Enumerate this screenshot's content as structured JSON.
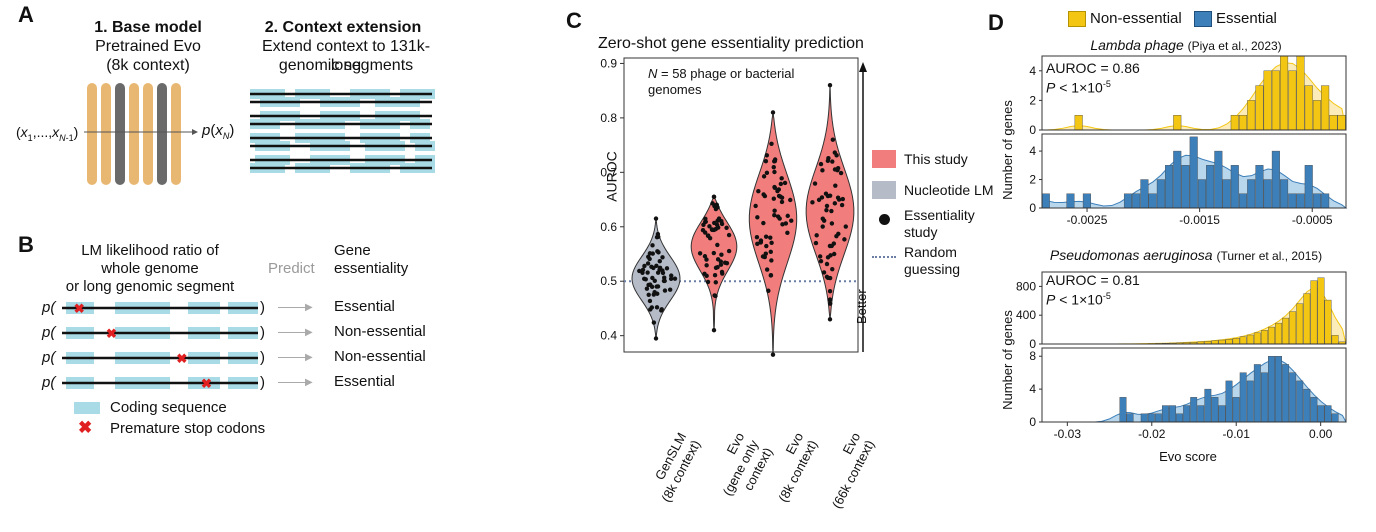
{
  "colors": {
    "tan": "#e8b872",
    "grey_bar": "#6a6a6a",
    "cyan": "#a8dbe6",
    "pink": "#f17d7d",
    "violin_grey": "#b5bcc8",
    "gold": "#f3c614",
    "gold_fill": "#fbe7a8",
    "blue": "#3d7fb9",
    "blue_fill": "#a6cde8",
    "red": "#e02020"
  },
  "panelA": {
    "label": "A",
    "base_title": "1. Base model",
    "base_sub1": "Pretrained Evo",
    "base_sub2": "(8k context)",
    "input_label": "(x1,...,xN-1)",
    "output_label": "p(xN)",
    "ext_title": "2. Context extension",
    "ext_sub1": "Extend context to 131k-long",
    "ext_sub2": "genomic segments"
  },
  "panelB": {
    "label": "B",
    "head1": "LM likelihood ratio of",
    "head2": "whole genome",
    "head3": "or long genomic segment",
    "predict": "Predict",
    "gene1": "Gene",
    "gene2": "essentiality",
    "p_prefix": "p(",
    "p_suffix": ")",
    "rows": [
      {
        "outcome": "Essential",
        "stop": 0.08
      },
      {
        "outcome": "Non-essential",
        "stop": 0.25
      },
      {
        "outcome": "Non-essential",
        "stop": 0.62
      },
      {
        "outcome": "Essential",
        "stop": 0.75
      }
    ],
    "legend_coding": "Coding sequence",
    "legend_stop": "Premature stop codons"
  },
  "panelC": {
    "label": "C",
    "chart_data": {
      "type": "violin",
      "title": "Zero-shot gene essentiality prediction",
      "ylabel": "AUROC",
      "ylim": [
        0.37,
        0.91
      ],
      "yticks": [
        "0.4",
        "0.5",
        "0.6",
        "0.7",
        "0.8",
        "0.9"
      ],
      "annotation_line1": "N = 58 phage or bacterial",
      "annotation_line2": "genomes",
      "random_guess": 0.5,
      "better_label": "Better",
      "categories": [
        {
          "l1": "GenSLM",
          "l2": "(8k context)",
          "group": "Nucleotide LM",
          "min": 0.395,
          "max": 0.615,
          "median": 0.505
        },
        {
          "l1": "Evo",
          "l2": "(gene only context)",
          "group": "This study",
          "min": 0.41,
          "max": 0.655,
          "median": 0.57
        },
        {
          "l1": "Evo",
          "l2": "(8k context)",
          "group": "This study",
          "min": 0.365,
          "max": 0.81,
          "median": 0.62
        },
        {
          "l1": "Evo",
          "l2": "(66k context)",
          "group": "This study",
          "min": 0.43,
          "max": 0.86,
          "median": 0.625
        }
      ],
      "legend": {
        "this_study": "This study",
        "nucleotide_lm": "Nucleotide LM",
        "essentiality1": "Essentiality",
        "essentiality2": "study",
        "random1": "Random",
        "random2": "guessing"
      }
    }
  },
  "panelD": {
    "label": "D",
    "legend_nonessential": "Non-essential",
    "legend_essential": "Essential",
    "chart_data": [
      {
        "type": "histogram",
        "title_italic": "Lambda phage",
        "title_cite": "(Piya et al., 2023)",
        "auroc": "AUROC = 0.86",
        "pval": "P < 1×10",
        "pexp": "-5",
        "ylabel": "Number of  genes",
        "xlabel": "",
        "xlim": [
          -0.0029,
          -0.0002
        ],
        "xticks": [
          "-0.0025",
          "-0.0015",
          "-0.0005"
        ],
        "xtick_values": [
          -0.0025,
          -0.0015,
          -0.0005
        ],
        "top_yticks": [
          "0",
          "2",
          "4"
        ],
        "bottom_yticks": [
          "0",
          "2",
          "4"
        ],
        "nonessential_ylim": [
          0,
          5
        ],
        "essential_ylim": [
          0,
          5.2
        ],
        "nonessential_counts": [
          0,
          0,
          0,
          0,
          1,
          0,
          0,
          0,
          0,
          0,
          0,
          0,
          0,
          0,
          0,
          0,
          1,
          0,
          0,
          0,
          0,
          0,
          0,
          1,
          1,
          2,
          3,
          4,
          4,
          5,
          4,
          5,
          3,
          2,
          3,
          1,
          1
        ],
        "essential_counts": [
          1,
          0,
          0,
          1,
          0,
          1,
          0,
          0,
          0,
          0,
          1,
          1,
          2,
          1,
          2,
          3,
          4,
          3,
          5,
          2,
          3,
          4,
          2,
          3,
          1,
          2,
          3,
          2,
          4,
          2,
          1,
          1,
          3,
          1,
          1,
          0,
          0
        ]
      },
      {
        "type": "histogram",
        "title_italic": "Pseudomonas aeruginosa",
        "title_cite": "(Turner et al., 2015)",
        "auroc": "AUROC = 0.81",
        "pval": "P < 1×10",
        "pexp": "-5",
        "ylabel": "Number of  genes",
        "xlabel": "Evo score",
        "xlim": [
          -0.033,
          0.003
        ],
        "xticks": [
          "-0.03",
          "-0.02",
          "-0.01",
          "0.00"
        ],
        "xtick_values": [
          -0.03,
          -0.02,
          -0.01,
          0
        ],
        "top_yticks": [
          "0",
          "400",
          "800"
        ],
        "bottom_yticks": [
          "0",
          "4",
          "8"
        ],
        "nonessential_ylim": [
          0,
          1000
        ],
        "essential_ylim": [
          0,
          9
        ],
        "nonessential_counts": [
          0,
          0,
          0,
          0,
          0,
          0,
          0,
          0,
          0,
          0,
          1,
          1,
          2,
          3,
          4,
          6,
          8,
          10,
          13,
          16,
          20,
          25,
          30,
          38,
          46,
          55,
          66,
          80,
          100,
          125,
          155,
          190,
          235,
          290,
          360,
          450,
          560,
          700,
          880,
          920,
          610,
          120,
          30
        ],
        "essential_counts": [
          0,
          0,
          0,
          0,
          0,
          0,
          0,
          0,
          0,
          0,
          0,
          3,
          1,
          0,
          1,
          1,
          1,
          2,
          2,
          1,
          2,
          3,
          2,
          4,
          3,
          2,
          5,
          3,
          6,
          5,
          7,
          6,
          8,
          8,
          7,
          6,
          5,
          4,
          3,
          2,
          2,
          1,
          0
        ]
      }
    ]
  }
}
